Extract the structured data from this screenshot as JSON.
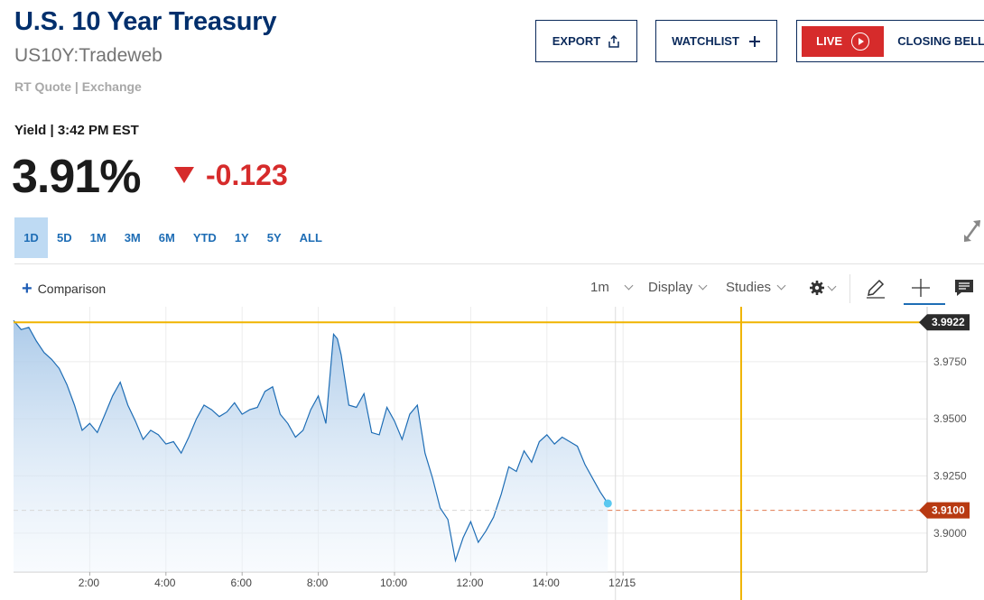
{
  "header": {
    "title": "U.S. 10 Year Treasury",
    "symbol": "US10Y:Tradeweb",
    "quote_source": "RT Quote | Exchange"
  },
  "actions": {
    "export_label": "EXPORT",
    "watchlist_label": "WATCHLIST",
    "live_label": "LIVE",
    "closing_bell_label": "CLOSING BELL"
  },
  "quote": {
    "yield_label": "Yield | 3:42 PM EST",
    "price": "3.91%",
    "change": "-0.123",
    "change_color": "#d62b2b"
  },
  "tabs": [
    "1D",
    "5D",
    "1M",
    "3M",
    "6M",
    "YTD",
    "1Y",
    "5Y",
    "ALL"
  ],
  "active_tab": "1D",
  "toolbar": {
    "comparison_label": "Comparison",
    "interval_label": "1m",
    "display_label": "Display",
    "studies_label": "Studies"
  },
  "chart_data": {
    "type": "area",
    "x_tick_labels": [
      "2:00",
      "4:00",
      "6:00",
      "8:00",
      "10:00",
      "12:00",
      "14:00",
      "12/15"
    ],
    "x_range_hours": [
      0.0,
      24.0
    ],
    "y_ticks": [
      3.975,
      3.95,
      3.925,
      3.9
    ],
    "y_range": [
      3.883,
      3.999
    ],
    "high_label": "3.9922",
    "high_value": 3.9922,
    "last_label": "3.9100",
    "last_value": 3.91,
    "line_color": "#1e6db5",
    "high_line_color": "#f0b400",
    "last_line_color": "#e07a4f",
    "vertical_marker_hours": [
      15.8,
      19.1
    ],
    "grid": true,
    "series": [
      {
        "x": [
          0.0,
          0.2,
          0.4,
          0.6,
          0.8,
          1.0,
          1.2,
          1.4,
          1.6,
          1.8,
          2.0,
          2.2,
          2.4,
          2.6,
          2.8,
          3.0,
          3.2,
          3.4,
          3.6,
          3.8,
          4.0,
          4.2,
          4.4,
          4.6,
          4.8,
          5.0,
          5.2,
          5.4,
          5.6,
          5.8,
          6.0,
          6.2,
          6.4,
          6.6,
          6.8,
          7.0,
          7.2,
          7.4,
          7.6,
          7.8,
          8.0,
          8.2,
          8.4,
          8.5,
          8.6,
          8.8,
          9.0,
          9.2,
          9.4,
          9.6,
          9.8,
          10.0,
          10.2,
          10.4,
          10.6,
          10.8,
          11.0,
          11.2,
          11.4,
          11.6,
          11.8,
          12.0,
          12.2,
          12.4,
          12.6,
          12.8,
          13.0,
          13.2,
          13.4,
          13.6,
          13.8,
          14.0,
          14.2,
          14.4,
          14.6,
          14.8,
          15.0,
          15.2,
          15.4,
          15.6
        ],
        "y": [
          3.993,
          3.989,
          3.99,
          3.984,
          3.979,
          3.976,
          3.972,
          3.965,
          3.956,
          3.945,
          3.948,
          3.944,
          3.952,
          3.96,
          3.966,
          3.956,
          3.949,
          3.941,
          3.945,
          3.943,
          3.939,
          3.94,
          3.935,
          3.942,
          3.95,
          3.956,
          3.954,
          3.951,
          3.953,
          3.957,
          3.952,
          3.954,
          3.955,
          3.962,
          3.964,
          3.952,
          3.948,
          3.942,
          3.945,
          3.954,
          3.96,
          3.948,
          3.987,
          3.985,
          3.978,
          3.956,
          3.955,
          3.961,
          3.944,
          3.943,
          3.955,
          3.949,
          3.941,
          3.952,
          3.956,
          3.935,
          3.924,
          3.911,
          3.906,
          3.888,
          3.898,
          3.905,
          3.896,
          3.901,
          3.907,
          3.917,
          3.929,
          3.927,
          3.936,
          3.931,
          3.94,
          3.943,
          3.939,
          3.942,
          3.94,
          3.938,
          3.93,
          3.924,
          3.918,
          3.913
        ]
      }
    ]
  }
}
